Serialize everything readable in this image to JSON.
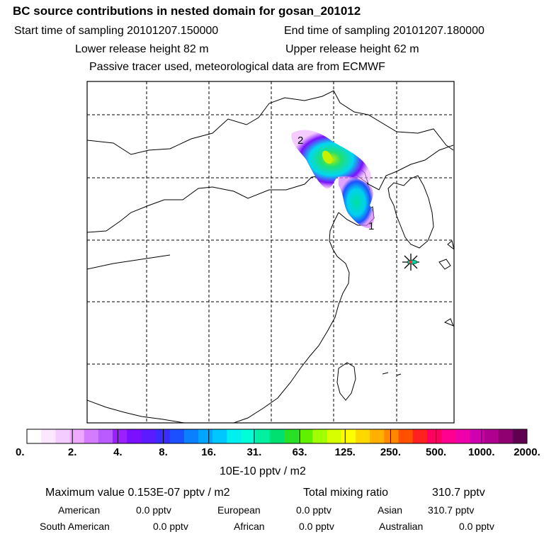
{
  "header": {
    "title": "BC  source contributions in nested domain for gosan_201012",
    "start_time": "Start time of sampling 20101207.150000",
    "end_time": "End time of sampling 20101207.180000",
    "lower_height": "Lower release height   82 m",
    "upper_height": "Upper release height   62 m",
    "note": "Passive tracer used, meteorological data are from ECMWF"
  },
  "map": {
    "labels": {
      "point_1": "1",
      "point_2": "2"
    },
    "colors": {
      "frame": "#000000",
      "grid": "#000000",
      "coast": "#000000",
      "receptor": "#ff3030"
    }
  },
  "colorbar": {
    "ticks": [
      "0.",
      "2.",
      "4.",
      "8.",
      "16.",
      "31.",
      "63.",
      "125.",
      "250.",
      "500.",
      "1000.",
      "2000."
    ],
    "unit": "10E-10 pptv / m2",
    "colors": [
      "#ffffff",
      "#fbe8ff",
      "#f5ccff",
      "#eeaaff",
      "#d47cff",
      "#b95bff",
      "#9b20ff",
      "#7a10ff",
      "#5c1aff",
      "#3a2cff",
      "#1c50ff",
      "#0a7fff",
      "#00a6ff",
      "#00c8ff",
      "#00f0f0",
      "#00ffd8",
      "#00f0a0",
      "#00e070",
      "#28e028",
      "#60f000",
      "#a0ff00",
      "#d8ff00",
      "#ffff00",
      "#ffd800",
      "#ffb000",
      "#ff8800",
      "#ff5000",
      "#ff2020",
      "#ff0060",
      "#ff0090",
      "#ee00aa",
      "#d000b0",
      "#b00090",
      "#900070",
      "#600050"
    ]
  },
  "stats": {
    "maximum_label": "Maximum value  0.153E-07 pptv / m2",
    "total_label": "Total mixing ratio",
    "total_value": "310.7 pptv",
    "regions": [
      {
        "name": "American",
        "value": "0.0 pptv"
      },
      {
        "name": "European",
        "value": "0.0 pptv"
      },
      {
        "name": "Asian",
        "value": "310.7 pptv"
      },
      {
        "name": "South American",
        "value": "0.0 pptv"
      },
      {
        "name": "African",
        "value": "0.0 pptv"
      },
      {
        "name": "Australian",
        "value": "0.0 pptv"
      }
    ]
  }
}
